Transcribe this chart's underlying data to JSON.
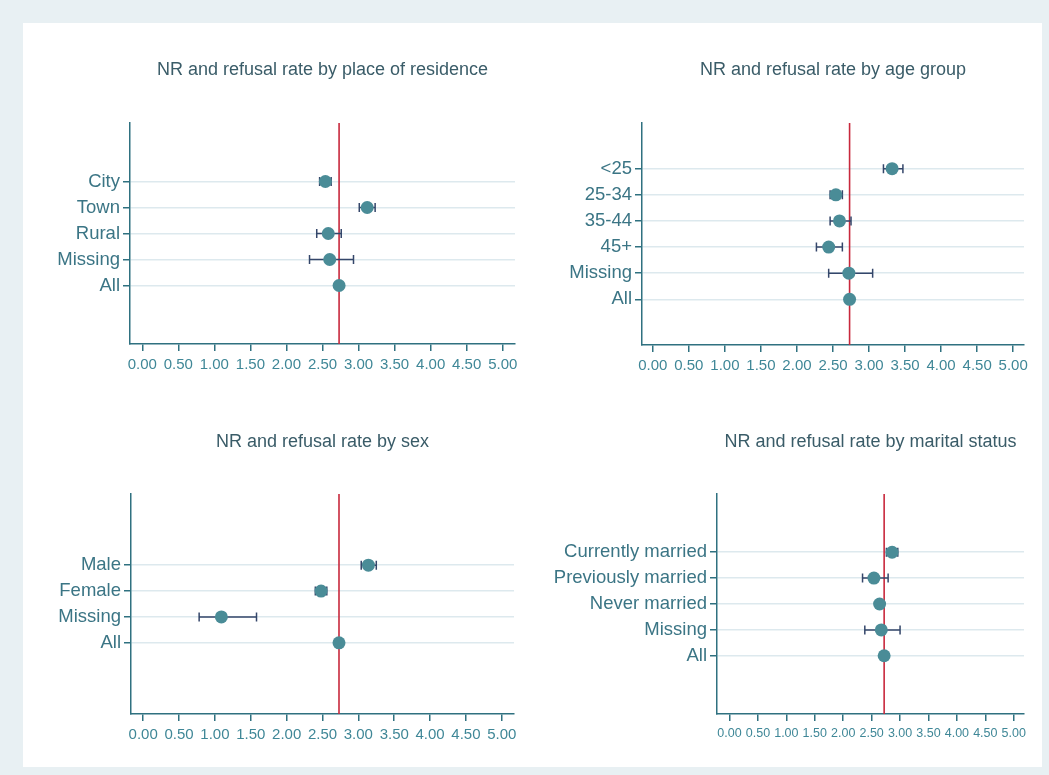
{
  "chart_data": [
    {
      "type": "scatter",
      "title": "NR and refusal rate by place of residence",
      "orientation": "horizontal",
      "categories": [
        "City",
        "Town",
        "Rural",
        "Missing",
        "All"
      ],
      "values": [
        2.54,
        3.12,
        2.58,
        2.6,
        2.73
      ],
      "errors": [
        [
          2.46,
          2.62
        ],
        [
          3.01,
          3.23
        ],
        [
          2.42,
          2.76
        ],
        [
          2.32,
          2.93
        ],
        null
      ],
      "color": "#4a8c97",
      "xlim": [
        -0.17,
        5.17
      ],
      "xticks": [
        {
          "value": 0,
          "label": "0.00"
        },
        {
          "value": 0.5,
          "label": "0.50"
        },
        {
          "value": 1,
          "label": "1.00"
        },
        {
          "value": 1.5,
          "label": "1.50"
        },
        {
          "value": 2,
          "label": "2.00"
        },
        {
          "value": 2.5,
          "label": "2.50"
        },
        {
          "value": 3,
          "label": "3.00"
        },
        {
          "value": 3.5,
          "label": "3.50"
        },
        {
          "value": 4,
          "label": "4.00"
        },
        {
          "value": 4.5,
          "label": "4.50"
        },
        {
          "value": 5,
          "label": "5.00"
        }
      ],
      "ref_lines": [
        {
          "axis": "x",
          "value": 2.73,
          "color": "#c8283c"
        }
      ],
      "grid": "y",
      "marker": "circle"
    },
    {
      "type": "scatter",
      "title": "NR and refusal rate by age group",
      "orientation": "horizontal",
      "categories": [
        "<25",
        "25-34",
        "35-44",
        "45+",
        "Missing",
        "All"
      ],
      "values": [
        3.32,
        2.54,
        2.59,
        2.44,
        2.72,
        2.73
      ],
      "errors": [
        [
          3.2,
          3.47
        ],
        [
          2.46,
          2.63
        ],
        [
          2.46,
          2.75
        ],
        [
          2.27,
          2.63
        ],
        [
          2.44,
          3.05
        ],
        null
      ],
      "color": "#4a8c97",
      "xlim": [
        -0.15,
        5.15
      ],
      "xticks": [
        {
          "value": 0,
          "label": "0.00"
        },
        {
          "value": 0.5,
          "label": "0.50"
        },
        {
          "value": 1,
          "label": "1.00"
        },
        {
          "value": 1.5,
          "label": "1.50"
        },
        {
          "value": 2,
          "label": "2.00"
        },
        {
          "value": 2.5,
          "label": "2.50"
        },
        {
          "value": 3,
          "label": "3.00"
        },
        {
          "value": 3.5,
          "label": "3.50"
        },
        {
          "value": 4,
          "label": "4.00"
        },
        {
          "value": 4.5,
          "label": "4.50"
        },
        {
          "value": 5,
          "label": "5.00"
        }
      ],
      "ref_lines": [
        {
          "axis": "x",
          "value": 2.73,
          "color": "#c8283c"
        }
      ],
      "grid": "y",
      "marker": "circle"
    },
    {
      "type": "scatter",
      "title": "NR and refusal rate by sex",
      "orientation": "horizontal",
      "categories": [
        "Male",
        "Female",
        "Missing",
        "All"
      ],
      "values": [
        3.14,
        2.48,
        1.09,
        2.73
      ],
      "errors": [
        [
          3.04,
          3.25
        ],
        [
          2.4,
          2.56
        ],
        [
          0.78,
          1.58
        ],
        null
      ],
      "color": "#4a8c97",
      "xlim": [
        -0.17,
        5.17
      ],
      "xticks": [
        {
          "value": 0,
          "label": "0.00"
        },
        {
          "value": 0.5,
          "label": "0.50"
        },
        {
          "value": 1,
          "label": "1.00"
        },
        {
          "value": 1.5,
          "label": "1.50"
        },
        {
          "value": 2,
          "label": "2.00"
        },
        {
          "value": 2.5,
          "label": "2.50"
        },
        {
          "value": 3,
          "label": "3.00"
        },
        {
          "value": 3.5,
          "label": "3.50"
        },
        {
          "value": 4,
          "label": "4.00"
        },
        {
          "value": 4.5,
          "label": "4.50"
        },
        {
          "value": 5,
          "label": "5.00"
        }
      ],
      "ref_lines": [
        {
          "axis": "x",
          "value": 2.73,
          "color": "#c8283c"
        }
      ],
      "grid": "y",
      "marker": "circle"
    },
    {
      "type": "scatter",
      "title": "NR and refusal rate by marital status",
      "orientation": "horizontal",
      "categories": [
        "Currently married",
        "Previously married",
        "Never married",
        "Missing",
        "All"
      ],
      "values": [
        2.86,
        2.54,
        2.64,
        2.67,
        2.72
      ],
      "errors": [
        [
          2.76,
          2.96
        ],
        [
          2.34,
          2.79
        ],
        null,
        [
          2.38,
          3.0
        ],
        null
      ],
      "color": "#4a8c97",
      "xlim": [
        -0.22,
        5.18
      ],
      "xticks": [
        {
          "value": 0,
          "label": "0.00"
        },
        {
          "value": 0.5,
          "label": "0.50"
        },
        {
          "value": 1,
          "label": "1.00"
        },
        {
          "value": 1.5,
          "label": "1.50"
        },
        {
          "value": 2,
          "label": "2.00"
        },
        {
          "value": 2.5,
          "label": "2.50"
        },
        {
          "value": 3,
          "label": "3.00"
        },
        {
          "value": 3.5,
          "label": "3.50"
        },
        {
          "value": 4,
          "label": "4.00"
        },
        {
          "value": 4.5,
          "label": "4.50"
        },
        {
          "value": 5,
          "label": "5.00"
        }
      ],
      "ref_lines": [
        {
          "axis": "x",
          "value": 2.72,
          "color": "#c8283c"
        }
      ],
      "grid": "y",
      "marker": "circle"
    }
  ]
}
